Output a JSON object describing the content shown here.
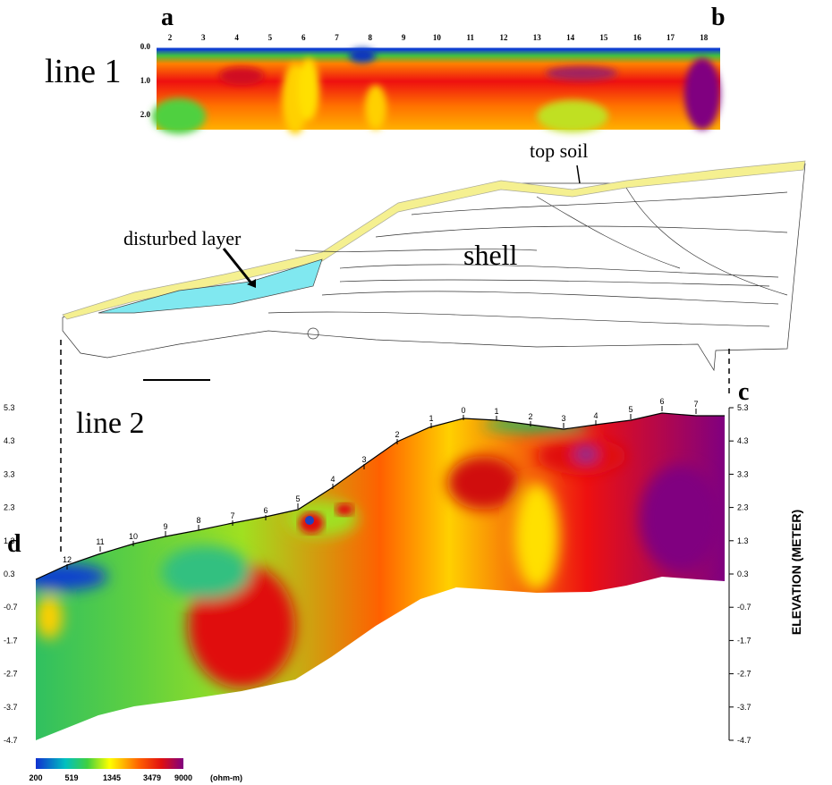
{
  "figure": {
    "panel_labels": [
      "a",
      "b",
      "c",
      "d"
    ],
    "line1": {
      "title": "line 1",
      "electrodes": [
        "2",
        "3",
        "4",
        "5",
        "6",
        "7",
        "8",
        "9",
        "10",
        "11",
        "12",
        "13",
        "14",
        "15",
        "16",
        "17",
        "18"
      ],
      "depths": [
        "0.0",
        "1.0",
        "2.0"
      ]
    },
    "section": {
      "annotations": [
        "top soil",
        "disturbed layer",
        "shell"
      ]
    },
    "line2": {
      "title": "line 2",
      "electrodes": [
        "12",
        "11",
        "10",
        "9",
        "8",
        "7",
        "6",
        "5",
        "4",
        "3",
        "2",
        "1",
        "0",
        "1",
        "2",
        "3",
        "4",
        "5",
        "6",
        "7"
      ],
      "elevations": [
        "5.3",
        "4.3",
        "3.3",
        "2.3",
        "1.3",
        "0.3",
        "-0.7",
        "-1.7",
        "-2.7",
        "-3.7",
        "-4.7"
      ],
      "axis_title": "ELEVATION (METER)"
    },
    "colorbar": {
      "labels": [
        "200",
        "519",
        "1345",
        "3479",
        "9000"
      ],
      "unit": "(ohm-m)"
    }
  }
}
